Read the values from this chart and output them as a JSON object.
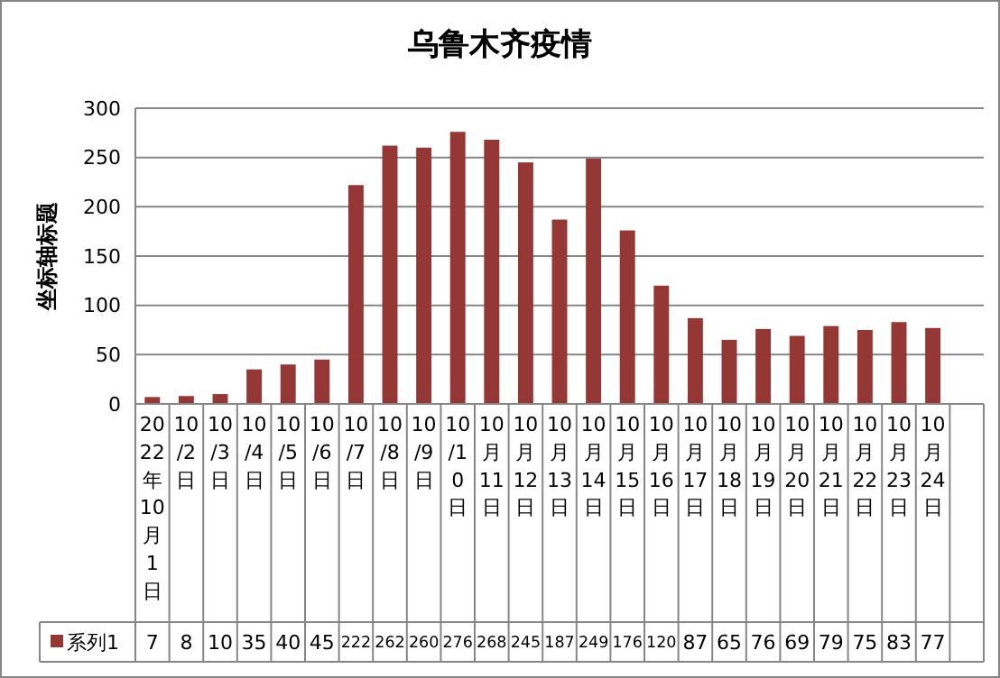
{
  "chart_data": {
    "type": "bar",
    "title": "乌鲁木齐疫情",
    "ylabel": "坐标轴标题",
    "categories": [
      "2022年10月1日",
      "10/2日",
      "10/3日",
      "10/4日",
      "10/5日",
      "10/6日",
      "10/7日",
      "10/8日",
      "10/9日",
      "10/10日",
      "10月11日",
      "10月12日",
      "10月13日",
      "10月14日",
      "10月15日",
      "10月16日",
      "10月17日",
      "10月18日",
      "10月19日",
      "10月20日",
      "10月21日",
      "10月22日",
      "10月23日",
      "10月24日",
      null
    ],
    "series": [
      {
        "name": "系列1",
        "color": "#953735",
        "values": [
          7,
          8,
          10,
          35,
          40,
          45,
          222,
          262,
          260,
          276,
          268,
          245,
          187,
          249,
          176,
          120,
          87,
          65,
          76,
          69,
          79,
          75,
          83,
          77,
          null
        ]
      }
    ],
    "data_labels": true,
    "ylim": [
      0,
      300
    ],
    "yticks": [
      0,
      50,
      100,
      150,
      200,
      250,
      300
    ],
    "grid": "y",
    "legend": "bottom"
  }
}
